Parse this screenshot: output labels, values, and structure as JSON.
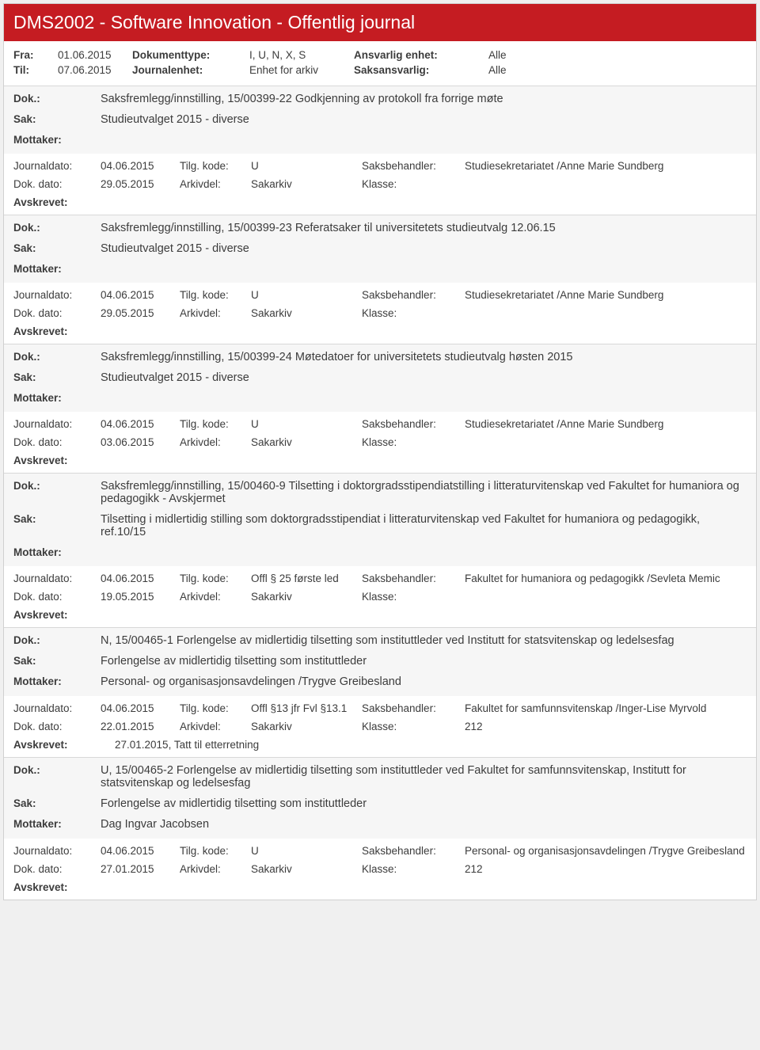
{
  "header": {
    "title": "DMS2002 - Software Innovation - Offentlig journal",
    "fra_label": "Fra:",
    "fra_value": "01.06.2015",
    "til_label": "Til:",
    "til_value": "07.06.2015",
    "doktype_label": "Dokumenttype:",
    "doktype_value": "I, U, N, X, S",
    "journalenhet_label": "Journalenhet:",
    "journalenhet_value": "Enhet for arkiv",
    "ansvarlig_label": "Ansvarlig enhet:",
    "ansvarlig_value": "Alle",
    "saksansvarlig_label": "Saksansvarlig:",
    "saksansvarlig_value": "Alle"
  },
  "labels": {
    "dok": "Dok.:",
    "sak": "Sak:",
    "mottaker": "Mottaker:",
    "journaldato": "Journaldato:",
    "dokdato": "Dok. dato:",
    "tilgkode": "Tilg. kode:",
    "arkivdel": "Arkivdel:",
    "saksbehandler": "Saksbehandler:",
    "klasse": "Klasse:",
    "avskrevet": "Avskrevet:"
  },
  "entries": [
    {
      "dok": "Saksfremlegg/innstilling, 15/00399-22 Godkjenning av protokoll fra forrige møte",
      "sak": "Studieutvalget 2015 - diverse",
      "mottaker": "",
      "journaldato": "04.06.2015",
      "dokdato": "29.05.2015",
      "tilgkode": "U",
      "arkivdel": "Sakarkiv",
      "saksbehandler": "Studiesekretariatet /Anne Marie Sundberg",
      "klasse": "",
      "avskrevet": ""
    },
    {
      "dok": "Saksfremlegg/innstilling, 15/00399-23 Referatsaker til universitetets studieutvalg 12.06.15",
      "sak": "Studieutvalget 2015 - diverse",
      "mottaker": "",
      "journaldato": "04.06.2015",
      "dokdato": "29.05.2015",
      "tilgkode": "U",
      "arkivdel": "Sakarkiv",
      "saksbehandler": "Studiesekretariatet /Anne Marie Sundberg",
      "klasse": "",
      "avskrevet": ""
    },
    {
      "dok": "Saksfremlegg/innstilling, 15/00399-24 Møtedatoer for universitetets studieutvalg høsten 2015",
      "sak": "Studieutvalget 2015 - diverse",
      "mottaker": "",
      "journaldato": "04.06.2015",
      "dokdato": "03.06.2015",
      "tilgkode": "U",
      "arkivdel": "Sakarkiv",
      "saksbehandler": "Studiesekretariatet /Anne Marie Sundberg",
      "klasse": "",
      "avskrevet": ""
    },
    {
      "dok": "Saksfremlegg/innstilling, 15/00460-9 Tilsetting i doktorgradsstipendiatstilling i litteraturvitenskap ved Fakultet for humaniora og pedagogikk - Avskjermet",
      "sak": "Tilsetting i midlertidig stilling som doktorgradsstipendiat i litteraturvitenskap ved Fakultet for humaniora og pedagogikk, ref.10/15",
      "mottaker": "",
      "journaldato": "04.06.2015",
      "dokdato": "19.05.2015",
      "tilgkode": "Offl § 25 første led",
      "arkivdel": "Sakarkiv",
      "saksbehandler": "Fakultet for humaniora og pedagogikk /Sevleta Memic",
      "klasse": "",
      "avskrevet": ""
    },
    {
      "dok": "N, 15/00465-1 Forlengelse av midlertidig tilsetting som instituttleder ved Institutt for statsvitenskap og ledelsesfag",
      "sak": "Forlengelse av midlertidig tilsetting som instituttleder",
      "mottaker": "Personal- og organisasjonsavdelingen /Trygve Greibesland",
      "journaldato": "04.06.2015",
      "dokdato": "22.01.2015",
      "tilgkode": "Offl §13 jfr Fvl §13.1",
      "arkivdel": "Sakarkiv",
      "saksbehandler": "Fakultet for samfunnsvitenskap /Inger-Lise Myrvold",
      "klasse": "212",
      "avskrevet": "27.01.2015, Tatt til etterretning"
    },
    {
      "dok": "U, 15/00465-2 Forlengelse av midlertidig tilsetting som instituttleder ved Fakultet for samfunnsvitenskap, Institutt for statsvitenskap og ledelsesfag",
      "sak": "Forlengelse av midlertidig tilsetting som instituttleder",
      "mottaker": "Dag Ingvar Jacobsen",
      "journaldato": "04.06.2015",
      "dokdato": "27.01.2015",
      "tilgkode": "U",
      "arkivdel": "Sakarkiv",
      "saksbehandler": "Personal- og organisasjonsavdelingen /Trygve Greibesland",
      "klasse": "212",
      "avskrevet": ""
    }
  ],
  "style": {
    "header_bg": "#c51c22",
    "header_text": "#ffffff",
    "body_text": "#3c3c3c",
    "entry_head_bg": "#f6f6f6",
    "page_bg": "#ffffff",
    "outer_bg": "#f0f0f0"
  }
}
